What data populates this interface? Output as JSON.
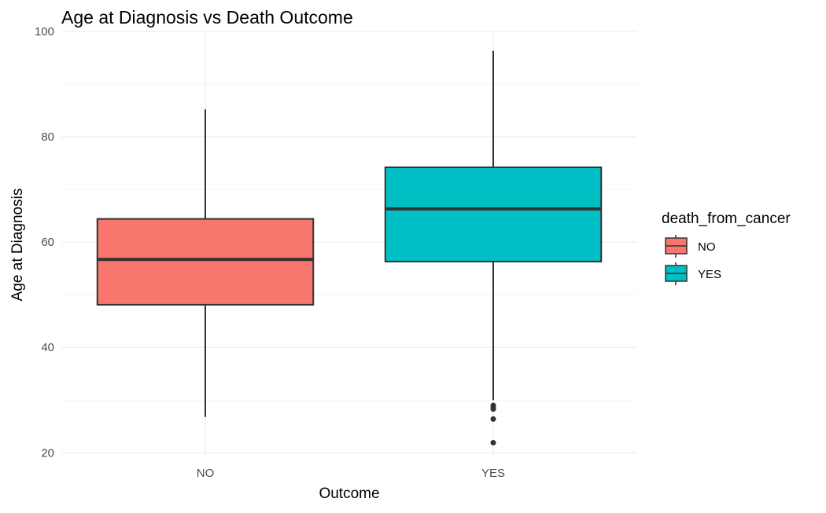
{
  "chart_data": {
    "type": "boxplot",
    "title": "Age at Diagnosis vs Death Outcome",
    "xlabel": "Outcome",
    "ylabel": "Age at Diagnosis",
    "categories": [
      "NO",
      "YES"
    ],
    "ylim": [
      19,
      100
    ],
    "yticks": [
      20,
      40,
      60,
      80,
      100
    ],
    "grid": true,
    "legend": {
      "title": "death_from_cancer",
      "placement": "right",
      "entries": [
        {
          "label": "NO",
          "color": "#F8766D"
        },
        {
          "label": "YES",
          "color": "#00BFC4"
        }
      ]
    },
    "boxes": [
      {
        "category": "NO",
        "fill": "#F8766D",
        "whisker_low": 26.8,
        "q1": 48.1,
        "median": 56.7,
        "q3": 64.4,
        "whisker_high": 85.2,
        "outliers": []
      },
      {
        "category": "YES",
        "fill": "#00BFC4",
        "whisker_low": 30.0,
        "q1": 56.3,
        "median": 66.3,
        "q3": 74.2,
        "whisker_high": 96.3,
        "outliers": [
          29.0,
          28.7,
          28.3,
          26.4,
          21.9
        ]
      }
    ]
  }
}
